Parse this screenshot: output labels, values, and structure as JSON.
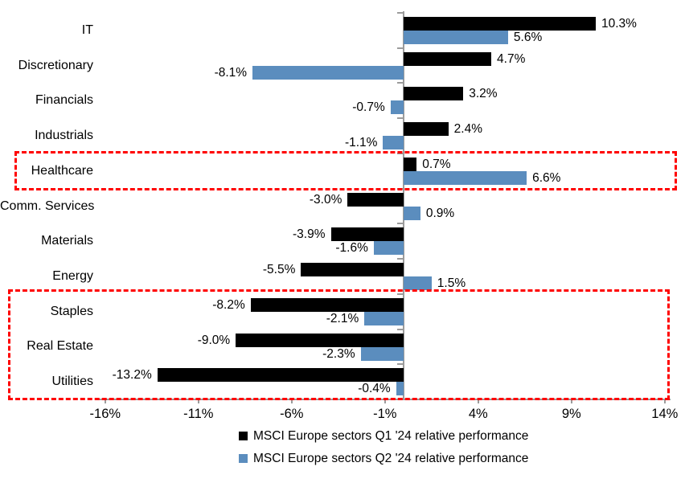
{
  "chart_data": {
    "type": "bar",
    "orientation": "horizontal",
    "title": "",
    "categories": [
      "IT",
      "Discretionary",
      "Financials",
      "Industrials",
      "Healthcare",
      "Comm. Services",
      "Materials",
      "Energy",
      "Staples",
      "Real Estate",
      "Utilities"
    ],
    "series": [
      {
        "name": "MSCI Europe sectors Q1 '24 relative performance",
        "color": "#000000",
        "values": [
          10.3,
          4.7,
          3.2,
          2.4,
          0.7,
          -3.0,
          -3.9,
          -5.5,
          -8.2,
          -9.0,
          -13.2
        ],
        "labels": [
          "10.3%",
          "4.7%",
          "3.2%",
          "2.4%",
          "0.7%",
          "-3.0%",
          "-3.9%",
          "-5.5%",
          "-8.2%",
          "-9.0%",
          "-13.2%"
        ]
      },
      {
        "name": "MSCI Europe sectors Q2 '24 relative performance",
        "color": "#5b8dbe",
        "values": [
          5.6,
          -8.1,
          -0.7,
          -1.1,
          6.6,
          0.9,
          -1.6,
          1.5,
          -2.1,
          -2.3,
          -0.4
        ],
        "labels": [
          "5.6%",
          "-8.1%",
          "-0.7%",
          "-1.1%",
          "6.6%",
          "0.9%",
          "-1.6%",
          "1.5%",
          "-2.1%",
          "-2.3%",
          "-0.4%"
        ]
      }
    ],
    "x_ticks": [
      {
        "value": -16,
        "label": "-16%"
      },
      {
        "value": -11,
        "label": "-11%"
      },
      {
        "value": -6,
        "label": "-6%"
      },
      {
        "value": -1,
        "label": "-1%"
      },
      {
        "value": 4,
        "label": "4%"
      },
      {
        "value": 9,
        "label": "9%"
      },
      {
        "value": 14,
        "label": "14%"
      }
    ],
    "xlim": [
      -16.5,
      14.5
    ],
    "grid": false,
    "legend_position": "bottom",
    "axis_color": "#9c9c9c",
    "highlight_color": "#ff0000",
    "highlights": [
      {
        "sectors": [
          "Healthcare"
        ]
      },
      {
        "sectors": [
          "Staples",
          "Real Estate",
          "Utilities"
        ]
      }
    ]
  }
}
